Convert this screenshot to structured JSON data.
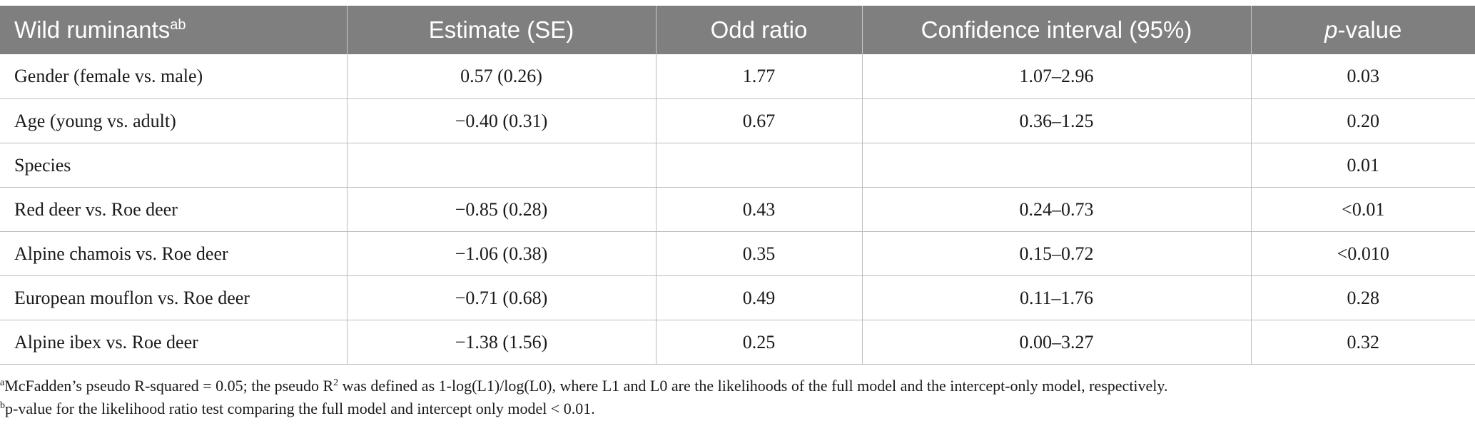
{
  "table": {
    "headers": [
      {
        "text": "Wild ruminants",
        "sup": "ab"
      },
      {
        "text": "Estimate (SE)"
      },
      {
        "text": "Odd ratio"
      },
      {
        "text": "Confidence interval (95%)"
      },
      {
        "italic": "p",
        "text": "-value"
      }
    ],
    "rows": [
      [
        "Gender (female vs. male)",
        "0.57 (0.26)",
        "1.77",
        "1.07–2.96",
        "0.03"
      ],
      [
        "Age (young vs. adult)",
        "−0.40 (0.31)",
        "0.67",
        "0.36–1.25",
        "0.20"
      ],
      [
        "Species",
        "",
        "",
        "",
        "0.01"
      ],
      [
        "Red deer vs. Roe deer",
        "−0.85 (0.28)",
        "0.43",
        "0.24–0.73",
        "<0.01"
      ],
      [
        "Alpine chamois vs. Roe deer",
        "−1.06 (0.38)",
        "0.35",
        "0.15–0.72",
        "<0.010"
      ],
      [
        "European mouflon vs. Roe deer",
        "−0.71 (0.68)",
        "0.49",
        "0.11–1.76",
        "0.28"
      ],
      [
        "Alpine ibex vs. Roe deer",
        "−1.38 (1.56)",
        "0.25",
        "0.00–3.27",
        "0.32"
      ]
    ]
  },
  "footnotes": {
    "a": {
      "marker": "a",
      "part1": "McFadden’s pseudo R-squared = 0.05; the pseudo R",
      "sup": "2",
      "part2": " was defined as 1-log(L1)/log(L0), where L1 and L0 are the likelihoods of the full model and the intercept-only model, respectively."
    },
    "b": {
      "marker": "b",
      "text": "p-value for the likelihood ratio test comparing the full model and intercept only model < 0.01."
    }
  }
}
